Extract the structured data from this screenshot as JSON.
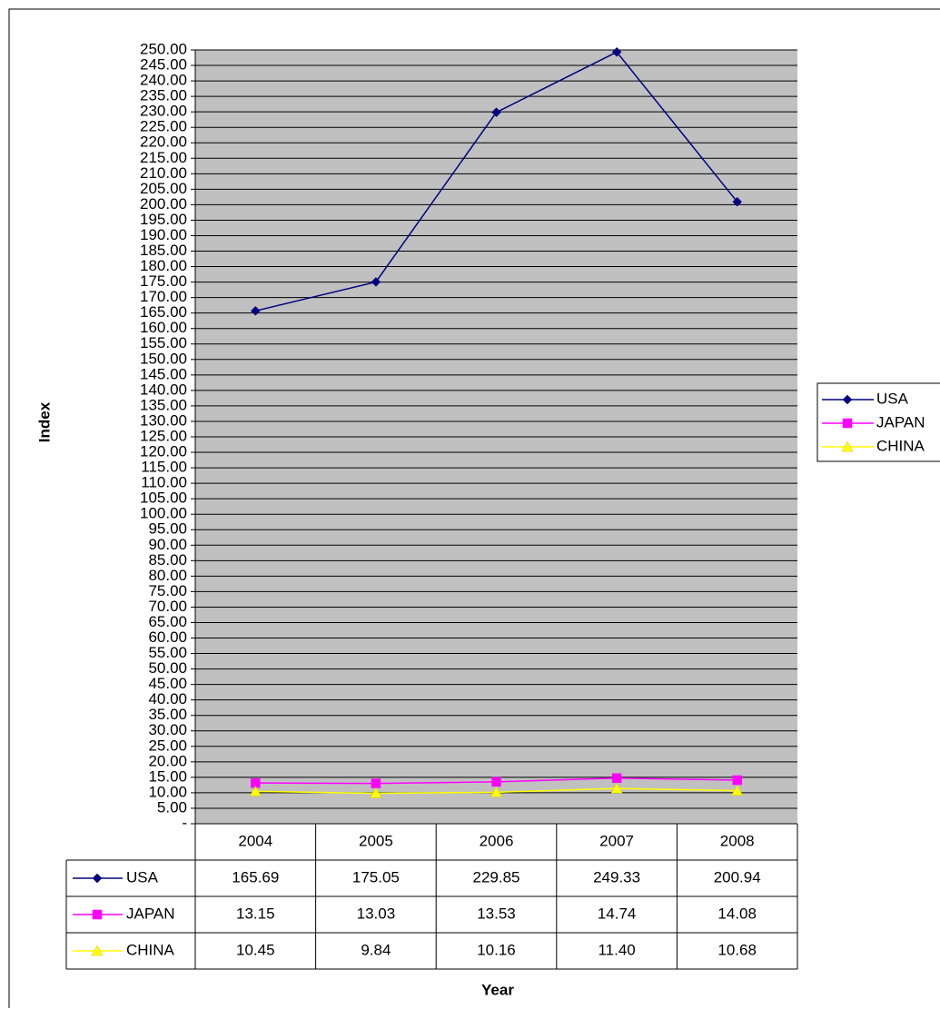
{
  "chart_data": {
    "type": "line",
    "y_label": "Index",
    "x_label": "Year",
    "categories": [
      "2004",
      "2005",
      "2006",
      "2007",
      "2008"
    ],
    "series": [
      {
        "name": "USA",
        "color": "#000080",
        "marker": "diamond",
        "values": [
          165.69,
          175.05,
          229.85,
          249.33,
          200.94
        ],
        "value_labels": [
          "165.69",
          "175.05",
          "229.85",
          "249.33",
          "200.94"
        ]
      },
      {
        "name": "JAPAN",
        "color": "#ff00ff",
        "marker": "square",
        "values": [
          13.15,
          13.03,
          13.53,
          14.74,
          14.08
        ],
        "value_labels": [
          "13.15",
          "13.03",
          "13.53",
          "14.74",
          "14.08"
        ]
      },
      {
        "name": "CHINA",
        "color": "#ffff00",
        "marker": "triangle",
        "values": [
          10.45,
          9.84,
          10.16,
          11.4,
          10.68
        ],
        "value_labels": [
          "10.45",
          "9.84",
          "10.16",
          "11.40",
          "10.68"
        ]
      }
    ],
    "ylim": [
      0,
      250
    ],
    "yticks": [
      {
        "value": 0,
        "label": "-"
      },
      {
        "value": 5,
        "label": "5.00"
      },
      {
        "value": 10,
        "label": "10.00"
      },
      {
        "value": 15,
        "label": "15.00"
      },
      {
        "value": 20,
        "label": "20.00"
      },
      {
        "value": 25,
        "label": "25.00"
      },
      {
        "value": 30,
        "label": "30.00"
      },
      {
        "value": 35,
        "label": "35.00"
      },
      {
        "value": 40,
        "label": "40.00"
      },
      {
        "value": 45,
        "label": "45.00"
      },
      {
        "value": 50,
        "label": "50.00"
      },
      {
        "value": 55,
        "label": "55.00"
      },
      {
        "value": 60,
        "label": "60.00"
      },
      {
        "value": 65,
        "label": "65.00"
      },
      {
        "value": 70,
        "label": "70.00"
      },
      {
        "value": 75,
        "label": "75.00"
      },
      {
        "value": 80,
        "label": "80.00"
      },
      {
        "value": 85,
        "label": "85.00"
      },
      {
        "value": 90,
        "label": "90.00"
      },
      {
        "value": 95,
        "label": "95.00"
      },
      {
        "value": 100,
        "label": "100.00"
      },
      {
        "value": 105,
        "label": "105.00"
      },
      {
        "value": 110,
        "label": "110.00"
      },
      {
        "value": 115,
        "label": "115.00"
      },
      {
        "value": 120,
        "label": "120.00"
      },
      {
        "value": 125,
        "label": "125.00"
      },
      {
        "value": 130,
        "label": "130.00"
      },
      {
        "value": 135,
        "label": "135.00"
      },
      {
        "value": 140,
        "label": "140.00"
      },
      {
        "value": 145,
        "label": "145.00"
      },
      {
        "value": 150,
        "label": "150.00"
      },
      {
        "value": 155,
        "label": "155.00"
      },
      {
        "value": 160,
        "label": "160.00"
      },
      {
        "value": 165,
        "label": "165.00"
      },
      {
        "value": 170,
        "label": "170.00"
      },
      {
        "value": 175,
        "label": "175.00"
      },
      {
        "value": 180,
        "label": "180.00"
      },
      {
        "value": 185,
        "label": "185.00"
      },
      {
        "value": 190,
        "label": "190.00"
      },
      {
        "value": 195,
        "label": "195.00"
      },
      {
        "value": 200,
        "label": "200.00"
      },
      {
        "value": 205,
        "label": "205.00"
      },
      {
        "value": 210,
        "label": "210.00"
      },
      {
        "value": 215,
        "label": "215.00"
      },
      {
        "value": 220,
        "label": "220.00"
      },
      {
        "value": 225,
        "label": "225.00"
      },
      {
        "value": 230,
        "label": "230.00"
      },
      {
        "value": 235,
        "label": "235.00"
      },
      {
        "value": 240,
        "label": "240.00"
      },
      {
        "value": 245,
        "label": "245.00"
      },
      {
        "value": 250,
        "label": "250.00"
      }
    ],
    "grid": true,
    "plot_background": "#c0c0c0",
    "legend": "right"
  }
}
